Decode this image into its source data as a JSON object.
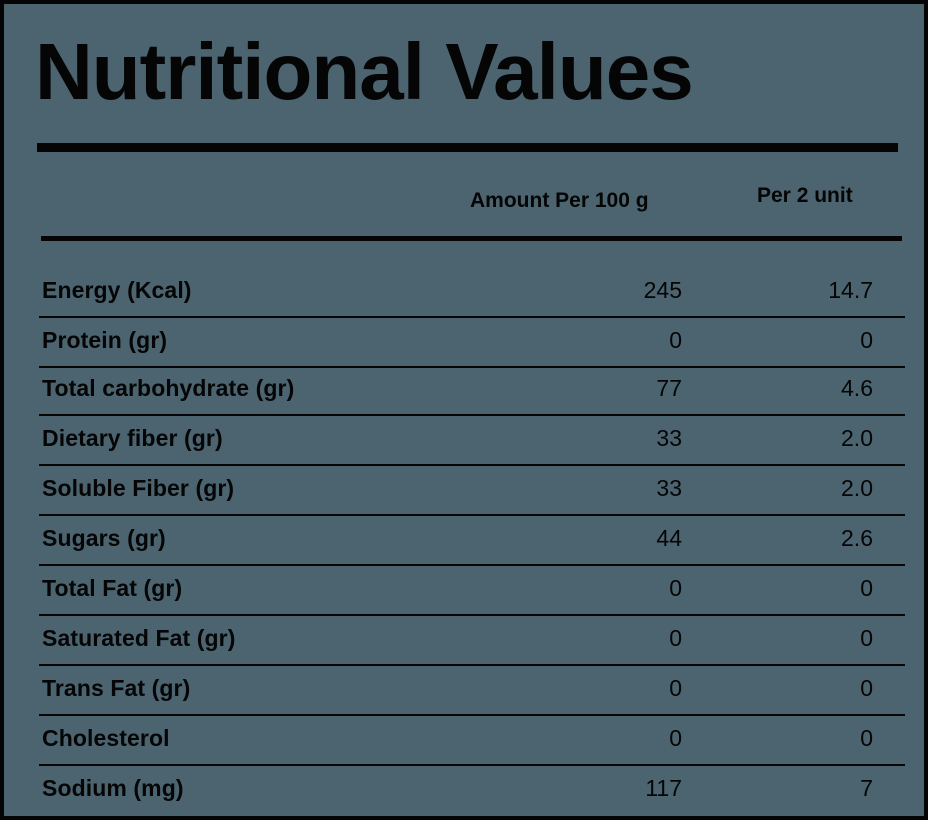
{
  "title": "Nutritional Values",
  "columns": {
    "per_100g": "Amount Per 100 g",
    "per_unit": "Per 2 unit"
  },
  "rows": [
    {
      "label": "Energy (Kcal)",
      "per_100g": "245",
      "per_unit": "14.7"
    },
    {
      "label": "Protein (gr)",
      "per_100g": "0",
      "per_unit": "0"
    },
    {
      "label": "Total carbohydrate (gr)",
      "per_100g": "77",
      "per_unit": "4.6"
    },
    {
      "label": "Dietary fiber (gr)",
      "per_100g": "33",
      "per_unit": "2.0"
    },
    {
      "label": "Soluble Fiber (gr)",
      "per_100g": "33",
      "per_unit": "2.0"
    },
    {
      "label": "Sugars (gr)",
      "per_100g": "44",
      "per_unit": "2.6"
    },
    {
      "label": "Total Fat (gr)",
      "per_100g": "0",
      "per_unit": "0"
    },
    {
      "label": "Saturated Fat (gr)",
      "per_100g": "0",
      "per_unit": "0"
    },
    {
      "label": "Trans Fat (gr)",
      "per_100g": "0",
      "per_unit": "0"
    },
    {
      "label": "Cholesterol",
      "per_100g": "0",
      "per_unit": "0"
    },
    {
      "label": "Sodium (mg)",
      "per_100g": "117",
      "per_unit": "7"
    }
  ],
  "colors": {
    "background": "#4b6470",
    "ink": "#050505"
  }
}
